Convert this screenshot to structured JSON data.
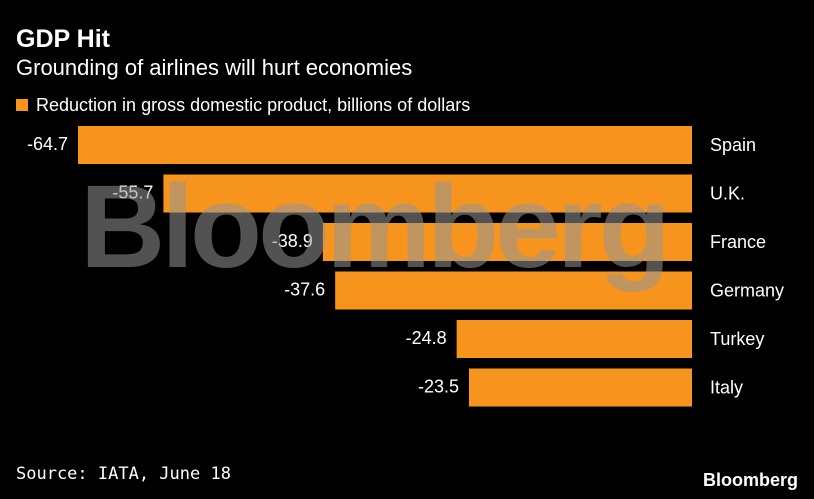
{
  "header": {
    "title": "GDP Hit",
    "subtitle": "Grounding of airlines will hurt economies"
  },
  "legend": {
    "label": "Reduction in gross domestic product, billions of dollars"
  },
  "footer": {
    "source": "Source: IATA, June 18",
    "logo": "Bloomberg"
  },
  "watermark": "Bloomberg",
  "colors": {
    "bar": "#f7941d",
    "background": "#000000",
    "text": "#ffffff"
  },
  "chart_data": {
    "type": "bar",
    "orientation": "horizontal",
    "categories": [
      "Spain",
      "U.K.",
      "France",
      "Germany",
      "Turkey",
      "Italy"
    ],
    "values": [
      -64.7,
      -55.7,
      -38.9,
      -37.6,
      -24.8,
      -23.5
    ],
    "value_labels": [
      "-64.7",
      "-55.7",
      "-38.9",
      "-37.6",
      "-24.8",
      "-23.5"
    ],
    "title": "GDP Hit",
    "subtitle": "Grounding of airlines will hurt economies",
    "legend": [
      "Reduction in gross domestic product, billions of dollars"
    ],
    "legend_position": "top-left",
    "xlim": [
      -64.7,
      0
    ],
    "grid": false
  }
}
